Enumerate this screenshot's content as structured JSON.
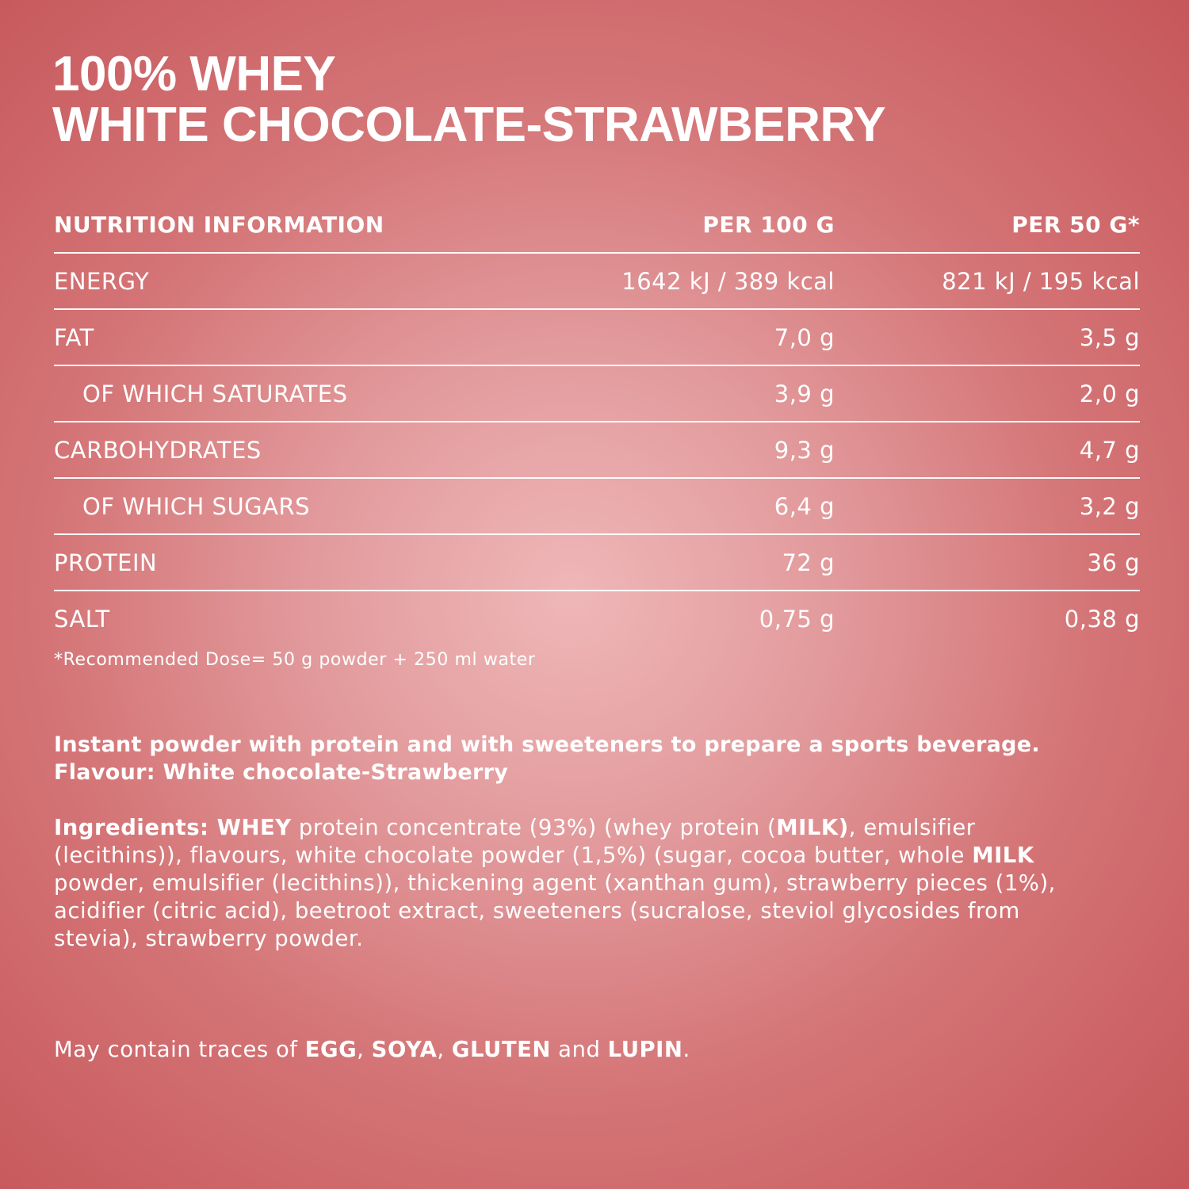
{
  "header": {
    "title_lines": [
      "100% WHEY",
      "WHITE CHOCOLATE-STRAWBERRY"
    ]
  },
  "table": {
    "header": [
      "NUTRITION INFORMATION",
      "PER 100 G",
      "PER 50 G*"
    ],
    "rows": [
      [
        "ENERGY",
        "1642 kJ / 389 kcal",
        "821 kJ / 195 kcal"
      ],
      [
        "FAT",
        "7,0 g",
        "3,5 g"
      ],
      [
        "OF WHICH SATURATES",
        "3,9 g",
        "2,0 g"
      ],
      [
        "CARBOHYDRATES",
        "9,3 g",
        "4,7 g"
      ],
      [
        "OF WHICH SUGARS",
        "6,4 g",
        "3,2 g"
      ],
      [
        "PROTEIN",
        "72 g",
        "36 g"
      ],
      [
        "SALT",
        "0,75 g",
        "0,38 g"
      ]
    ]
  },
  "footnote": "*Recommended Dose= 50 g powder + 250 ml water",
  "description": [
    "Instant powder with protein and with sweeteners to prepare a sports beverage.",
    "Flavour: White chocolate-Strawberry"
  ],
  "ingredients": [
    "Ingredients: WHEY",
    " protein concentrate (93%) (whey protein (",
    "MILK)",
    ", emulsifier (lecithins)), flavours, white chocolate powder (1,5%) (sugar, cocoa butter, whole ",
    "MILK",
    " powder, emulsifier (lecithins)), thickening agent (xanthan gum), strawberry pieces (1%), acidifier (citric acid), beetroot extract, sweeteners (sucralose, steviol glycosides from stevia), strawberry powder."
  ],
  "allergens": [
    "May contain traces of ",
    "EGG",
    ", ",
    "SOYA",
    ", ",
    "GLUTEN",
    " and ",
    "LUPIN",
    "."
  ]
}
